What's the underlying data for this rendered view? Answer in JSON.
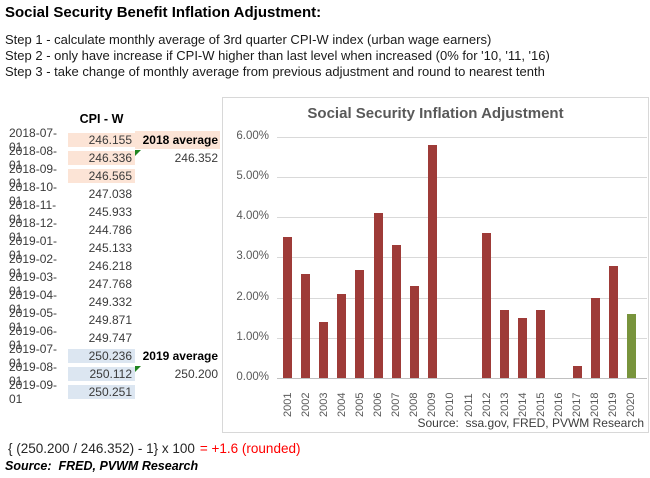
{
  "page": {
    "title": "Social Security Benefit Inflation Adjustment:",
    "steps": [
      "Step 1 - calculate monthly average of 3rd quarter CPI-W index (urban wage earners)",
      "Step 2 - only have increase if CPI-W higher than last level when increased (0% for '10, '11, '16)",
      "Step 3 - take change of monthly average from previous adjustment and round to nearest tenth"
    ],
    "formula": {
      "expression": "{ (250.200 / 246.352) - 1} x 100",
      "result": "= +1.6 (rounded)"
    },
    "source_note": "Source:  FRED, PVWM Research",
    "colors": {
      "formula_red": "#FF0000",
      "highlight_orange": "#FCE4D6",
      "highlight_blue": "#DCE6F1",
      "marker_green": "#218521"
    }
  },
  "table": {
    "header": "CPI - W",
    "rows": [
      {
        "date": "2018-07-01",
        "value": "246.155",
        "highlight": "orange",
        "note": "2018 average",
        "note_bold": true,
        "note_highlight": "orange"
      },
      {
        "date": "2018-08-01",
        "value": "246.336",
        "highlight": "orange",
        "note": "246.352",
        "marker": true
      },
      {
        "date": "2018-09-01",
        "value": "246.565",
        "highlight": "orange"
      },
      {
        "date": "2018-10-01",
        "value": "247.038"
      },
      {
        "date": "2018-11-01",
        "value": "245.933"
      },
      {
        "date": "2018-12-01",
        "value": "244.786"
      },
      {
        "date": "2019-01-01",
        "value": "245.133"
      },
      {
        "date": "2019-02-01",
        "value": "246.218"
      },
      {
        "date": "2019-03-01",
        "value": "247.768"
      },
      {
        "date": "2019-04-01",
        "value": "249.332"
      },
      {
        "date": "2019-05-01",
        "value": "249.871"
      },
      {
        "date": "2019-06-01",
        "value": "249.747"
      },
      {
        "date": "2019-07-01",
        "value": "250.236",
        "highlight": "blue",
        "note": "2019 average",
        "note_bold": true
      },
      {
        "date": "2019-08-01",
        "value": "250.112",
        "highlight": "blue",
        "note": "250.200",
        "marker": true
      },
      {
        "date": "2019-09-01",
        "value": "250.251",
        "highlight": "blue"
      }
    ]
  },
  "chart_data": {
    "type": "bar",
    "title": "Social Security Inflation Adjustment",
    "categories": [
      "2001",
      "2002",
      "2003",
      "2004",
      "2005",
      "2006",
      "2007",
      "2008",
      "2009",
      "2010",
      "2011",
      "2012",
      "2013",
      "2014",
      "2015",
      "2016",
      "2017",
      "2018",
      "2019",
      "2020"
    ],
    "values": [
      3.5,
      2.6,
      1.4,
      2.1,
      2.7,
      4.1,
      3.3,
      2.3,
      5.8,
      0,
      0,
      3.6,
      1.7,
      1.5,
      1.7,
      0,
      0.3,
      2.0,
      2.8,
      1.6
    ],
    "y_ticks": [
      "6.00%",
      "5.00%",
      "4.00%",
      "3.00%",
      "2.00%",
      "1.00%",
      "0.00%"
    ],
    "ylim": [
      0,
      6
    ],
    "grid": true,
    "legend": false,
    "highlight_index": 19,
    "colors": {
      "bar": "#9E3B38",
      "bar_highlight": "#78943C"
    },
    "source": "Source:  ssa.gov, FRED, PVWM Research"
  }
}
